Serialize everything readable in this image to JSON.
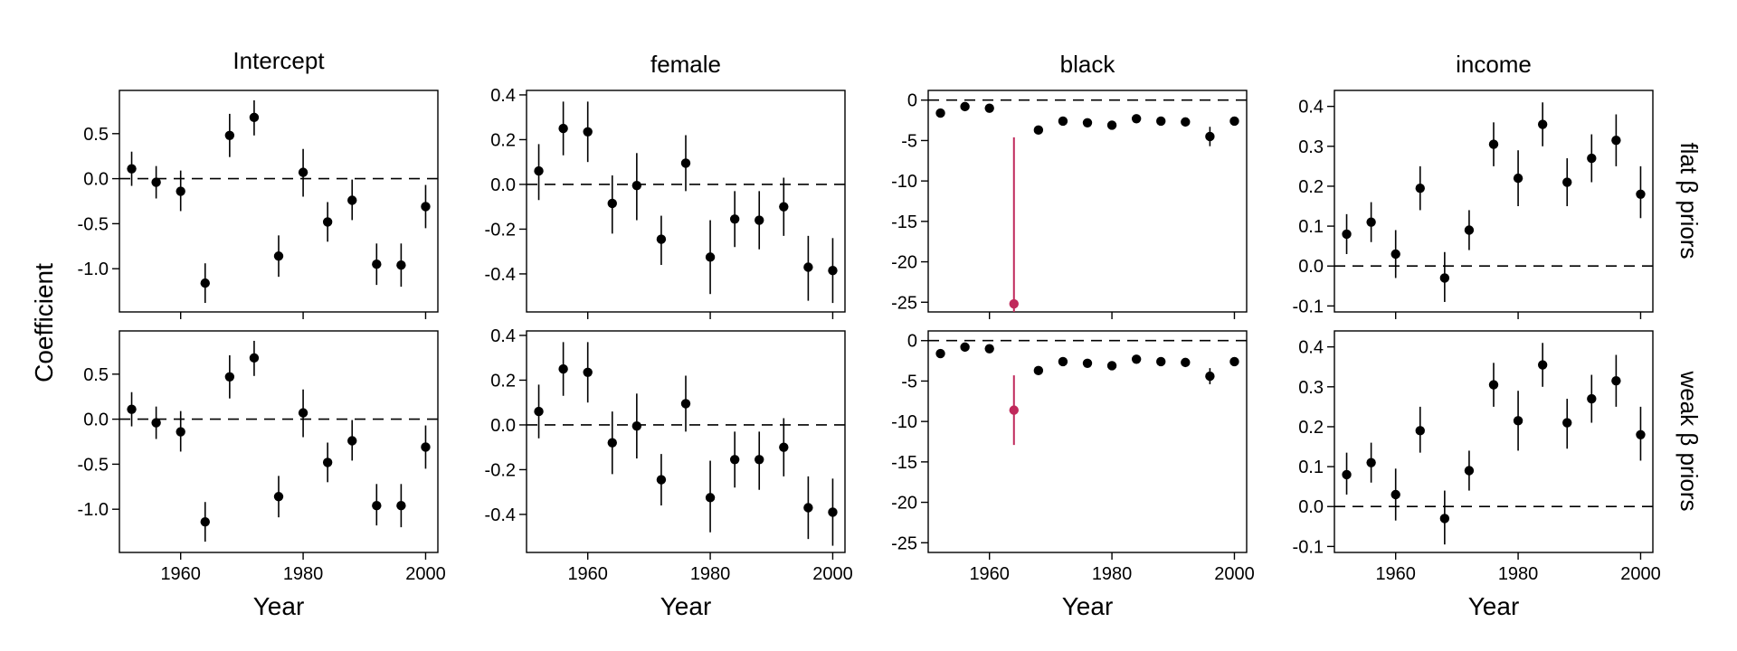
{
  "figure": {
    "ylabel": "Coefficient",
    "xlabel": "Year",
    "column_titles": [
      "Intercept",
      "female",
      "black",
      "income"
    ],
    "row_titles": [
      "flat β priors",
      "weak β priors"
    ]
  },
  "colors": {
    "point": "#000000",
    "highlight": "#c0295b",
    "reference_line": "#000000"
  },
  "chart_data": [
    {
      "type": "scatter",
      "panel": "Intercept / flat β priors",
      "title": "Intercept",
      "row": "flat β priors",
      "xlabel": "",
      "ylabel": "Coefficient",
      "xlim": [
        1950,
        2002
      ],
      "ylim": [
        -1.48,
        0.98
      ],
      "xticks": [
        1960,
        1980,
        2000
      ],
      "yticks": [
        0.5,
        0.0,
        -0.5,
        -1.0
      ],
      "ytick_labels": [
        "0.5",
        "0.0",
        "-0.5",
        "-1.0"
      ],
      "reference_y": 0,
      "series": [
        {
          "x": [
            1952,
            1956,
            1960,
            1964,
            1968,
            1972,
            1976,
            1980,
            1984,
            1988,
            1992,
            1996,
            2000
          ],
          "y": [
            0.11,
            -0.04,
            -0.14,
            -1.16,
            0.48,
            0.68,
            -0.86,
            0.07,
            -0.48,
            -0.24,
            -0.95,
            -0.96,
            -0.31
          ],
          "low": [
            -0.08,
            -0.22,
            -0.36,
            -1.38,
            0.24,
            0.48,
            -1.09,
            -0.2,
            -0.7,
            -0.46,
            -1.18,
            -1.2,
            -0.55
          ],
          "high": [
            0.3,
            0.14,
            0.09,
            -0.94,
            0.72,
            0.87,
            -0.63,
            0.33,
            -0.26,
            -0.01,
            -0.72,
            -0.72,
            -0.07
          ],
          "highlight_index": -1
        }
      ]
    },
    {
      "type": "scatter",
      "panel": "female / flat β priors",
      "title": "female",
      "row": "flat β priors",
      "xlabel": "",
      "ylabel": "",
      "xlim": [
        1950,
        2002
      ],
      "ylim": [
        -0.57,
        0.42
      ],
      "xticks": [
        1960,
        1980,
        2000
      ],
      "yticks": [
        0.4,
        0.2,
        0.0,
        -0.2,
        -0.4
      ],
      "ytick_labels": [
        "0.4",
        "0.2",
        "0.0",
        "-0.2",
        "-0.4"
      ],
      "reference_y": 0,
      "series": [
        {
          "x": [
            1952,
            1956,
            1960,
            1964,
            1968,
            1972,
            1976,
            1980,
            1984,
            1988,
            1992,
            1996,
            2000
          ],
          "y": [
            0.06,
            0.25,
            0.235,
            -0.085,
            -0.005,
            -0.245,
            0.095,
            -0.325,
            -0.155,
            -0.16,
            -0.1,
            -0.37,
            -0.385
          ],
          "low": [
            -0.07,
            0.13,
            0.1,
            -0.22,
            -0.16,
            -0.36,
            -0.03,
            -0.49,
            -0.28,
            -0.29,
            -0.23,
            -0.52,
            -0.53
          ],
          "high": [
            0.18,
            0.37,
            0.37,
            0.04,
            0.14,
            -0.14,
            0.22,
            -0.16,
            -0.03,
            -0.03,
            0.03,
            -0.23,
            -0.24
          ],
          "highlight_index": -1
        }
      ]
    },
    {
      "type": "scatter",
      "panel": "black / flat β priors",
      "title": "black",
      "row": "flat β priors",
      "xlabel": "",
      "ylabel": "",
      "xlim": [
        1950,
        2002
      ],
      "ylim": [
        -26.2,
        1.2
      ],
      "xticks": [
        1960,
        1980,
        2000
      ],
      "yticks": [
        0,
        -5,
        -10,
        -15,
        -20,
        -25
      ],
      "ytick_labels": [
        "0",
        "-5",
        "-10",
        "-15",
        "-20",
        "-25"
      ],
      "reference_y": 0,
      "series": [
        {
          "x": [
            1952,
            1956,
            1960,
            1964,
            1968,
            1972,
            1976,
            1980,
            1984,
            1988,
            1992,
            1996,
            2000
          ],
          "y": [
            -1.6,
            -0.8,
            -1.0,
            -25.2,
            -3.7,
            -2.6,
            -2.8,
            -3.1,
            -2.3,
            -2.6,
            -2.7,
            -4.5,
            -2.6
          ],
          "low": [
            -2.0,
            -1.1,
            -1.3,
            -26.2,
            -4.2,
            -3.0,
            -3.2,
            -3.5,
            -2.7,
            -3.0,
            -3.1,
            -5.7,
            -3.0
          ],
          "high": [
            -1.2,
            -0.5,
            -0.7,
            -4.6,
            -3.2,
            -2.2,
            -2.4,
            -2.7,
            -1.9,
            -2.2,
            -2.3,
            -3.3,
            -2.2
          ],
          "highlight_index": 3
        }
      ]
    },
    {
      "type": "scatter",
      "panel": "income / flat β priors",
      "title": "income",
      "row": "flat β priors",
      "xlabel": "",
      "ylabel": "",
      "xlim": [
        1950,
        2002
      ],
      "ylim": [
        -0.115,
        0.44
      ],
      "xticks": [
        1960,
        1980,
        2000
      ],
      "yticks": [
        0.4,
        0.3,
        0.2,
        0.1,
        0.0,
        -0.1
      ],
      "ytick_labels": [
        "0.4",
        "0.3",
        "0.2",
        "0.1",
        "0.0",
        "-0.1"
      ],
      "reference_y": 0,
      "series": [
        {
          "x": [
            1952,
            1956,
            1960,
            1964,
            1968,
            1972,
            1976,
            1980,
            1984,
            1988,
            1992,
            1996,
            2000
          ],
          "y": [
            0.08,
            0.11,
            0.03,
            0.195,
            -0.03,
            0.09,
            0.305,
            0.22,
            0.355,
            0.21,
            0.27,
            0.315,
            0.18
          ],
          "low": [
            0.03,
            0.06,
            -0.03,
            0.14,
            -0.09,
            0.04,
            0.25,
            0.15,
            0.3,
            0.15,
            0.21,
            0.25,
            0.12
          ],
          "high": [
            0.13,
            0.16,
            0.09,
            0.25,
            0.035,
            0.14,
            0.36,
            0.29,
            0.41,
            0.27,
            0.33,
            0.38,
            0.25
          ],
          "highlight_index": -1
        }
      ]
    },
    {
      "type": "scatter",
      "panel": "Intercept / weak β priors",
      "title": "",
      "row": "weak β priors",
      "xlabel": "Year",
      "ylabel": "Coefficient",
      "xlim": [
        1950,
        2002
      ],
      "ylim": [
        -1.48,
        0.98
      ],
      "xticks": [
        1960,
        1980,
        2000
      ],
      "yticks": [
        0.5,
        0.0,
        -0.5,
        -1.0
      ],
      "ytick_labels": [
        "0.5",
        "0.0",
        "-0.5",
        "-1.0"
      ],
      "reference_y": 0,
      "series": [
        {
          "x": [
            1952,
            1956,
            1960,
            1964,
            1968,
            1972,
            1976,
            1980,
            1984,
            1988,
            1992,
            1996,
            2000
          ],
          "y": [
            0.11,
            -0.04,
            -0.14,
            -1.14,
            0.47,
            0.68,
            -0.86,
            0.07,
            -0.48,
            -0.24,
            -0.96,
            -0.96,
            -0.31
          ],
          "low": [
            -0.08,
            -0.22,
            -0.36,
            -1.36,
            0.23,
            0.48,
            -1.09,
            -0.2,
            -0.7,
            -0.46,
            -1.18,
            -1.2,
            -0.55
          ],
          "high": [
            0.3,
            0.14,
            0.09,
            -0.92,
            0.71,
            0.87,
            -0.63,
            0.33,
            -0.26,
            -0.01,
            -0.72,
            -0.72,
            -0.07
          ],
          "highlight_index": -1
        }
      ]
    },
    {
      "type": "scatter",
      "panel": "female / weak β priors",
      "title": "",
      "row": "weak β priors",
      "xlabel": "Year",
      "ylabel": "",
      "xlim": [
        1950,
        2002
      ],
      "ylim": [
        -0.57,
        0.42
      ],
      "xticks": [
        1960,
        1980,
        2000
      ],
      "yticks": [
        0.4,
        0.2,
        0.0,
        -0.2,
        -0.4
      ],
      "ytick_labels": [
        "0.4",
        "0.2",
        "0.0",
        "-0.2",
        "-0.4"
      ],
      "reference_y": 0,
      "series": [
        {
          "x": [
            1952,
            1956,
            1960,
            1964,
            1968,
            1972,
            1976,
            1980,
            1984,
            1988,
            1992,
            1996,
            2000
          ],
          "y": [
            0.06,
            0.25,
            0.235,
            -0.08,
            -0.005,
            -0.245,
            0.095,
            -0.325,
            -0.155,
            -0.155,
            -0.1,
            -0.37,
            -0.39
          ],
          "low": [
            -0.06,
            0.13,
            0.1,
            -0.22,
            -0.15,
            -0.36,
            -0.03,
            -0.48,
            -0.28,
            -0.29,
            -0.23,
            -0.51,
            -0.54
          ],
          "high": [
            0.18,
            0.37,
            0.37,
            0.06,
            0.14,
            -0.13,
            0.22,
            -0.16,
            -0.03,
            -0.03,
            0.03,
            -0.23,
            -0.24
          ],
          "highlight_index": -1
        }
      ]
    },
    {
      "type": "scatter",
      "panel": "black / weak β priors",
      "title": "",
      "row": "weak β priors",
      "xlabel": "Year",
      "ylabel": "",
      "xlim": [
        1950,
        2002
      ],
      "ylim": [
        -26.2,
        1.2
      ],
      "xticks": [
        1960,
        1980,
        2000
      ],
      "yticks": [
        0,
        -5,
        -10,
        -15,
        -20,
        -25
      ],
      "ytick_labels": [
        "0",
        "-5",
        "-10",
        "-15",
        "-20",
        "-25"
      ],
      "reference_y": 0,
      "series": [
        {
          "x": [
            1952,
            1956,
            1960,
            1964,
            1968,
            1972,
            1976,
            1980,
            1984,
            1988,
            1992,
            1996,
            2000
          ],
          "y": [
            -1.6,
            -0.8,
            -1.0,
            -8.6,
            -3.7,
            -2.6,
            -2.8,
            -3.1,
            -2.3,
            -2.6,
            -2.7,
            -4.4,
            -2.6
          ],
          "low": [
            -2.0,
            -1.1,
            -1.3,
            -12.9,
            -4.2,
            -3.0,
            -3.2,
            -3.5,
            -2.7,
            -3.0,
            -3.1,
            -5.4,
            -3.0
          ],
          "high": [
            -1.2,
            -0.5,
            -0.7,
            -4.3,
            -3.2,
            -2.2,
            -2.4,
            -2.7,
            -1.9,
            -2.2,
            -2.3,
            -3.4,
            -2.2
          ],
          "highlight_index": 3
        }
      ]
    },
    {
      "type": "scatter",
      "panel": "income / weak β priors",
      "title": "",
      "row": "weak β priors",
      "xlabel": "Year",
      "ylabel": "",
      "xlim": [
        1950,
        2002
      ],
      "ylim": [
        -0.115,
        0.44
      ],
      "xticks": [
        1960,
        1980,
        2000
      ],
      "yticks": [
        0.4,
        0.3,
        0.2,
        0.1,
        0.0,
        -0.1
      ],
      "ytick_labels": [
        "0.4",
        "0.3",
        "0.2",
        "0.1",
        "0.0",
        "-0.1"
      ],
      "reference_y": 0,
      "series": [
        {
          "x": [
            1952,
            1956,
            1960,
            1964,
            1968,
            1972,
            1976,
            1980,
            1984,
            1988,
            1992,
            1996,
            2000
          ],
          "y": [
            0.08,
            0.11,
            0.03,
            0.19,
            -0.03,
            0.09,
            0.305,
            0.215,
            0.355,
            0.21,
            0.27,
            0.315,
            0.18
          ],
          "low": [
            0.03,
            0.06,
            -0.035,
            0.135,
            -0.095,
            0.04,
            0.25,
            0.14,
            0.3,
            0.145,
            0.21,
            0.25,
            0.115
          ],
          "high": [
            0.135,
            0.16,
            0.095,
            0.25,
            0.04,
            0.14,
            0.36,
            0.29,
            0.41,
            0.27,
            0.33,
            0.38,
            0.25
          ],
          "highlight_index": -1
        }
      ]
    }
  ]
}
